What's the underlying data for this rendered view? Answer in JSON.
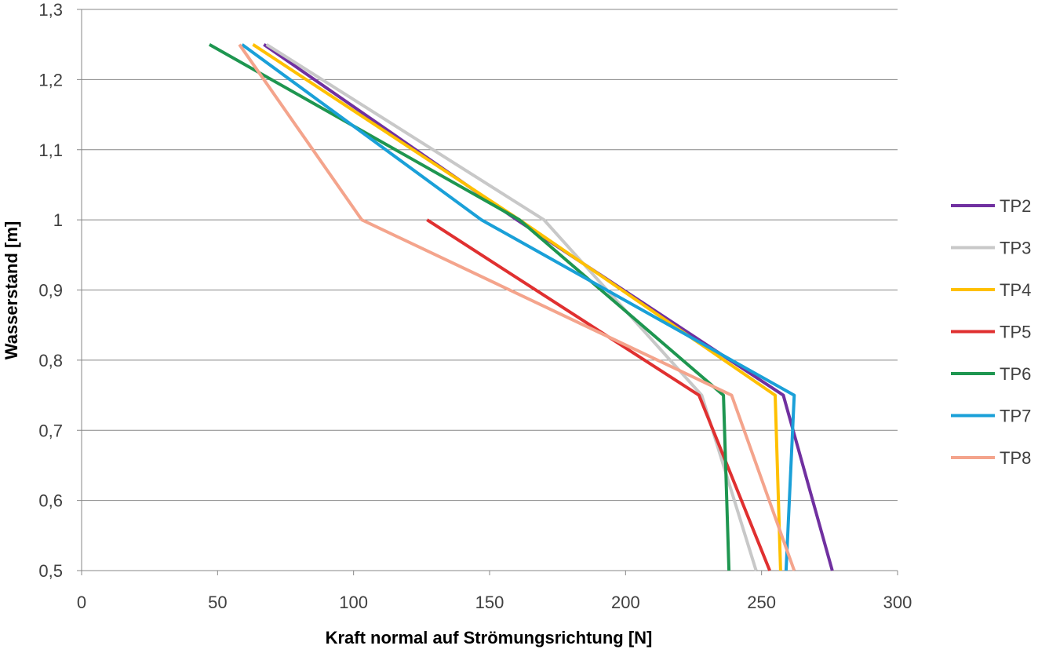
{
  "chart_data": {
    "type": "line",
    "title": "",
    "xlabel": "Kraft normal auf Strömungsrichtung  [N]",
    "ylabel": "Wasserstand [m]",
    "xlim": [
      0,
      300
    ],
    "ylim": [
      0.5,
      1.3
    ],
    "x_ticks": [
      0,
      50,
      100,
      150,
      200,
      250,
      300
    ],
    "x_tick_labels": [
      "0",
      "50",
      "100",
      "150",
      "200",
      "250",
      "300"
    ],
    "y_ticks": [
      0.5,
      0.6,
      0.7,
      0.8,
      0.9,
      1.0,
      1.1,
      1.2,
      1.3
    ],
    "y_tick_labels": [
      "0,5",
      "0,6",
      "0,7",
      "0,8",
      "0,9",
      "1",
      "1,1",
      "1,2",
      "1,3"
    ],
    "grid": "horizontal",
    "legend_position": "right",
    "series": [
      {
        "name": "TP2",
        "color": "#7030A0",
        "points": [
          [
            276,
            0.5
          ],
          [
            258,
            0.75
          ],
          [
            160,
            1.0
          ],
          [
            67,
            1.25
          ]
        ]
      },
      {
        "name": "TP3",
        "color": "#C8C8C8",
        "points": [
          [
            248,
            0.5
          ],
          [
            228,
            0.75
          ],
          [
            170,
            1.0
          ],
          [
            68,
            1.25
          ]
        ]
      },
      {
        "name": "TP4",
        "color": "#FFC000",
        "points": [
          [
            257,
            0.5
          ],
          [
            255,
            0.75
          ],
          [
            161,
            1.0
          ],
          [
            63,
            1.25
          ]
        ]
      },
      {
        "name": "TP5",
        "color": "#E03030",
        "points": [
          [
            253,
            0.5
          ],
          [
            227,
            0.75
          ],
          [
            127,
            1.0
          ]
        ]
      },
      {
        "name": "TP6",
        "color": "#1E9650",
        "points": [
          [
            238,
            0.5
          ],
          [
            236,
            0.75
          ],
          [
            161,
            1.0
          ],
          [
            47,
            1.25
          ]
        ]
      },
      {
        "name": "TP7",
        "color": "#1AA0D8",
        "points": [
          [
            259,
            0.5
          ],
          [
            262,
            0.75
          ],
          [
            147,
            1.0
          ],
          [
            59,
            1.25
          ]
        ]
      },
      {
        "name": "TP8",
        "color": "#F4A48C",
        "points": [
          [
            262,
            0.5
          ],
          [
            239,
            0.75
          ],
          [
            103,
            1.0
          ],
          [
            58,
            1.25
          ]
        ]
      }
    ]
  }
}
